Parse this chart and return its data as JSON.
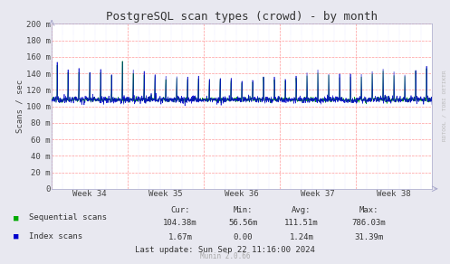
{
  "title": "PostgreSQL scan types (crowd) - by month",
  "ylabel": "Scans / sec",
  "background_color": "#e8e8f0",
  "plot_background": "#ffffff",
  "grid_color_major": "#ff9999",
  "grid_color_minor": "#ccccff",
  "ylim": [
    0,
    200
  ],
  "yticks": [
    0,
    20,
    40,
    60,
    80,
    100,
    120,
    140,
    160,
    180,
    200
  ],
  "ytick_labels": [
    "0",
    "20 m",
    "40 m",
    "60 m",
    "80 m",
    "100 m",
    "120 m",
    "140 m",
    "160 m",
    "180 m",
    "200 m"
  ],
  "week_labels": [
    "Week 34",
    "Week 35",
    "Week 36",
    "Week 37",
    "Week 38"
  ],
  "seq_color": "#00aa00",
  "idx_color": "#0000cc",
  "legend": [
    {
      "label": "Sequential scans",
      "color": "#00aa00"
    },
    {
      "label": "Index scans",
      "color": "#0000cc"
    }
  ],
  "stats_header": [
    "Cur:",
    "Min:",
    "Avg:",
    "Max:"
  ],
  "stats_seq": [
    "104.38m",
    "56.56m",
    "111.51m",
    "786.03m"
  ],
  "stats_idx": [
    "1.67m",
    "0.00",
    "1.24m",
    "31.39m"
  ],
  "last_update": "Last update: Sun Sep 22 11:16:00 2024",
  "munin_version": "Munin 2.0.66",
  "watermark": "RDTOOL / TOBI OETIKER",
  "title_fontsize": 9,
  "axis_fontsize": 6.5,
  "legend_fontsize": 6.5,
  "stats_fontsize": 6.5,
  "n_days": 35
}
